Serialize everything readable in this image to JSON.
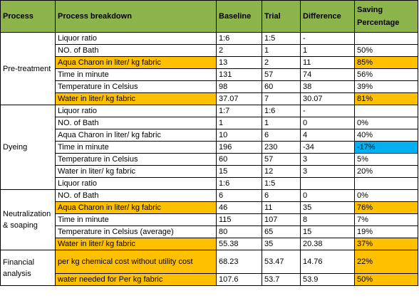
{
  "colors": {
    "header_bg": "#8db44b",
    "highlight": "#ffc000",
    "negative_highlight": "#00b0f0",
    "border": "#000000"
  },
  "columns": [
    "Process",
    "Process breakdown",
    "Baseline",
    "Trial",
    "Difference",
    "Saving Percentage"
  ],
  "groups": [
    {
      "process": "Pre-treatment",
      "rows": [
        {
          "item": "Liquor ratio",
          "baseline": "1:6",
          "trial": "1:5",
          "difference": "-",
          "saving": "",
          "hl": false,
          "save_hl": ""
        },
        {
          "item": "NO. of Bath",
          "baseline": "2",
          "trial": "1",
          "difference": "1",
          "saving": "50%",
          "hl": false,
          "save_hl": ""
        },
        {
          "item": " Aqua Charon in liter/ kg fabric",
          "baseline": "13",
          "trial": "2",
          "difference": "11",
          "saving": "85%",
          "hl": true,
          "save_hl": "highlight"
        },
        {
          "item": "Time in minute",
          "baseline": "131",
          "trial": "57",
          "difference": "74",
          "saving": "56%",
          "hl": false,
          "save_hl": ""
        },
        {
          "item": "Temperature in Celsius",
          "baseline": "98",
          "trial": "60",
          "difference": "38",
          "saving": "39%",
          "hl": false,
          "save_hl": ""
        },
        {
          "item": "Water in liter/ kg fabric",
          "baseline": "37.07",
          "trial": "7",
          "difference": "30.07",
          "saving": "81%",
          "hl": true,
          "save_hl": "highlight"
        }
      ]
    },
    {
      "process": "Dyeing",
      "rows": [
        {
          "item": "Liquor ratio",
          "baseline": "1:7",
          "trial": "1:6",
          "difference": "-",
          "saving": "",
          "hl": false,
          "save_hl": ""
        },
        {
          "item": "NO. of Bath",
          "baseline": "1",
          "trial": "1",
          "difference": "0",
          "saving": "0%",
          "hl": false,
          "save_hl": ""
        },
        {
          "item": " Aqua Charon in liter/ kg fabric",
          "baseline": "10",
          "trial": "6",
          "difference": "4",
          "saving": "40%",
          "hl": false,
          "save_hl": ""
        },
        {
          "item": "Time in minute",
          "baseline": "196",
          "trial": "230",
          "difference": "-34",
          "saving": "-17%",
          "hl": false,
          "save_hl": "negative_highlight"
        },
        {
          "item": "Temperature in Celsius",
          "baseline": "60",
          "trial": "57",
          "difference": "3",
          "saving": "5%",
          "hl": false,
          "save_hl": ""
        },
        {
          "item": "Water in liter/ kg fabric",
          "baseline": "15",
          "trial": "12",
          "difference": "3",
          "saving": "20%",
          "hl": false,
          "save_hl": ""
        },
        {
          "item": "Liquor ratio",
          "baseline": "1:6",
          "trial": "1:5",
          "difference": "",
          "saving": "",
          "hl": false,
          "save_hl": ""
        }
      ]
    },
    {
      "process": "Neutralization & soaping",
      "rows": [
        {
          "item": "NO. of Bath",
          "baseline": "6",
          "trial": "6",
          "difference": "0",
          "saving": "0%",
          "hl": false,
          "save_hl": ""
        },
        {
          "item": " Aqua Charon in liter/ kg fabric",
          "baseline": "46",
          "trial": "11",
          "difference": "35",
          "saving": "76%",
          "hl": true,
          "save_hl": "highlight"
        },
        {
          "item": "Time in minute",
          "baseline": "115",
          "trial": "107",
          "difference": "8",
          "saving": "7%",
          "hl": false,
          "save_hl": ""
        },
        {
          "item": "Temperature in Celsius (average)",
          "baseline": "80",
          "trial": "65",
          "difference": "15",
          "saving": "19%",
          "hl": false,
          "save_hl": ""
        },
        {
          "item": "Water in liter/ kg fabric",
          "baseline": "55.38",
          "trial": "35",
          "difference": "20.38",
          "saving": "37%",
          "hl": true,
          "save_hl": "highlight"
        }
      ]
    },
    {
      "process": "Financial analysis",
      "rows": [
        {
          "item": "per kg chemical cost without utility cost",
          "baseline": "68.23",
          "trial": "53.47",
          "difference": "14.76",
          "saving": "22%",
          "hl": true,
          "save_hl": "highlight"
        },
        {
          "item": "water needed for Per kg fabric",
          "baseline": "107.6",
          "trial": "53.7",
          "difference": "53.9",
          "saving": "50%",
          "hl": true,
          "save_hl": "highlight"
        }
      ]
    }
  ]
}
